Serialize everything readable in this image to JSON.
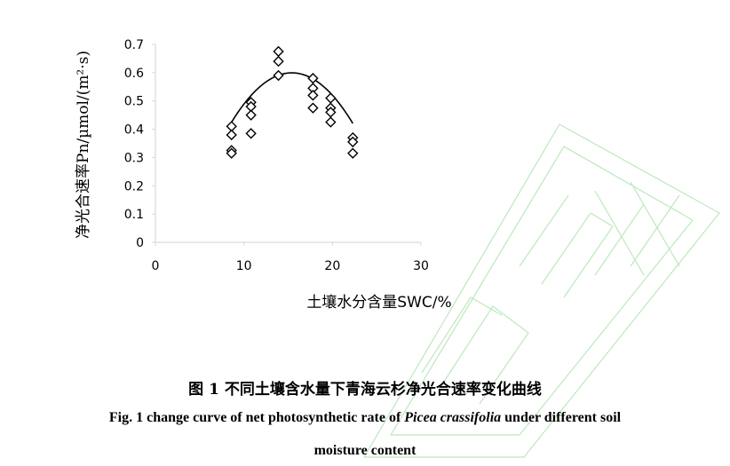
{
  "chart_data": {
    "type": "scatter",
    "xlabel": "土壤水分含量SWC/%",
    "ylabel": "净光合速率Pn/µmol/(m²·s)",
    "xlim": [
      0,
      30
    ],
    "ylim": [
      0,
      0.7
    ],
    "x_ticks": [
      "0",
      "10",
      "20",
      "30"
    ],
    "y_ticks": [
      "0",
      "0.1",
      "0.2",
      "0.3",
      "0.4",
      "0.5",
      "0.6",
      "0.7"
    ],
    "grid": false,
    "marker": "diamond",
    "points": [
      {
        "x": 8.6,
        "y": 0.41
      },
      {
        "x": 8.6,
        "y": 0.38
      },
      {
        "x": 8.6,
        "y": 0.325
      },
      {
        "x": 8.6,
        "y": 0.315
      },
      {
        "x": 10.8,
        "y": 0.495
      },
      {
        "x": 10.8,
        "y": 0.48
      },
      {
        "x": 10.8,
        "y": 0.45
      },
      {
        "x": 10.8,
        "y": 0.385
      },
      {
        "x": 13.9,
        "y": 0.675
      },
      {
        "x": 13.9,
        "y": 0.64
      },
      {
        "x": 13.9,
        "y": 0.59
      },
      {
        "x": 17.8,
        "y": 0.58
      },
      {
        "x": 17.8,
        "y": 0.545
      },
      {
        "x": 17.8,
        "y": 0.52
      },
      {
        "x": 17.8,
        "y": 0.475
      },
      {
        "x": 19.8,
        "y": 0.51
      },
      {
        "x": 19.8,
        "y": 0.475
      },
      {
        "x": 19.8,
        "y": 0.46
      },
      {
        "x": 19.8,
        "y": 0.425
      },
      {
        "x": 22.3,
        "y": 0.37
      },
      {
        "x": 22.3,
        "y": 0.355
      },
      {
        "x": 22.3,
        "y": 0.315
      }
    ],
    "trendline": {
      "type": "quadratic",
      "x_range": [
        8.6,
        22.3
      ],
      "coefficients": {
        "a": -0.00377,
        "b": 0.1162,
        "c": -0.296
      }
    }
  },
  "colors": {
    "axis": "#d9d9d9",
    "marker": "#000000",
    "trendline": "#000000",
    "watermark": "#a8e0a8"
  },
  "caption": {
    "cn": "图 1 不同土壤含水量下青海云杉净光合速率变化曲线",
    "en_before": "Fig. 1 change curve of net photosynthetic rate of ",
    "en_species": "Picea crassifolia",
    "en_after": " under different soil",
    "en_line2": "moisture content"
  },
  "watermark": {
    "type": "logo",
    "letters": "HJJXX"
  }
}
